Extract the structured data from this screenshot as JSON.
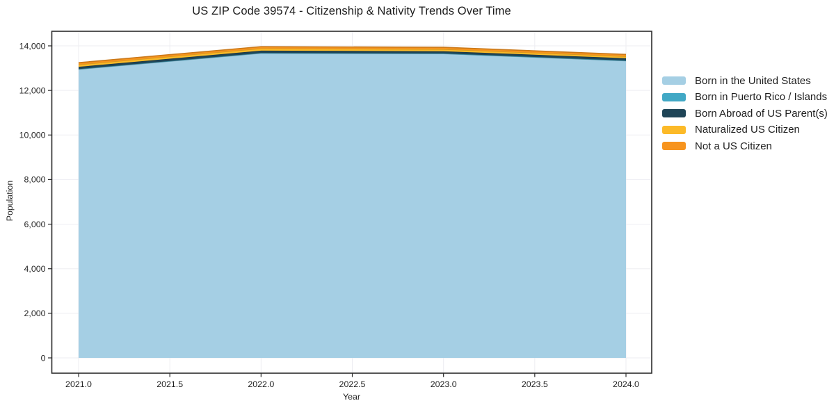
{
  "title": "US ZIP Code 39574 - Citizenship & Nativity Trends Over Time",
  "chart_data": {
    "type": "area",
    "stacked": true,
    "title": "US ZIP Code 39574 - Citizenship & Nativity Trends Over Time",
    "xlabel": "Year",
    "ylabel": "Population",
    "x": [
      2021,
      2022,
      2023,
      2024
    ],
    "series": [
      {
        "name": "Born in the United States",
        "color": "#a5cfe4",
        "values": [
          12950,
          13670,
          13650,
          13330
        ]
      },
      {
        "name": "Born in Puerto Rico / Islands",
        "color": "#41a8c5",
        "values": [
          10,
          10,
          10,
          10
        ]
      },
      {
        "name": "Born Abroad of US Parent(s)",
        "color": "#1f4557",
        "values": [
          100,
          105,
          100,
          105
        ]
      },
      {
        "name": "Naturalized US Citizen",
        "color": "#fcba28",
        "values": [
          100,
          100,
          90,
          85
        ]
      },
      {
        "name": "Not a US Citizen",
        "color": "#f7941e",
        "values": [
          85,
          80,
          85,
          85
        ]
      }
    ],
    "x_tick_values": [
      2021.0,
      2021.5,
      2022.0,
      2022.5,
      2023.0,
      2023.5,
      2024.0
    ],
    "x_ticks": [
      "2021.0",
      "2021.5",
      "2022.0",
      "2022.5",
      "2023.0",
      "2023.5",
      "2024.0"
    ],
    "y_tick_values": [
      0,
      2000,
      4000,
      6000,
      8000,
      10000,
      12000,
      14000
    ],
    "y_ticks": [
      "0",
      "2,000",
      "4,000",
      "6,000",
      "8,000",
      "10,000",
      "12,000",
      "14,000"
    ],
    "xlim": [
      2021.0,
      2024.0
    ],
    "ylim": [
      0,
      14000
    ],
    "grid": true,
    "legend_position": "right"
  },
  "colors": {
    "background": "#ffffff",
    "spine": "#2b2b2b",
    "gridline": "#ededf2",
    "text": "#1f1f1f"
  }
}
